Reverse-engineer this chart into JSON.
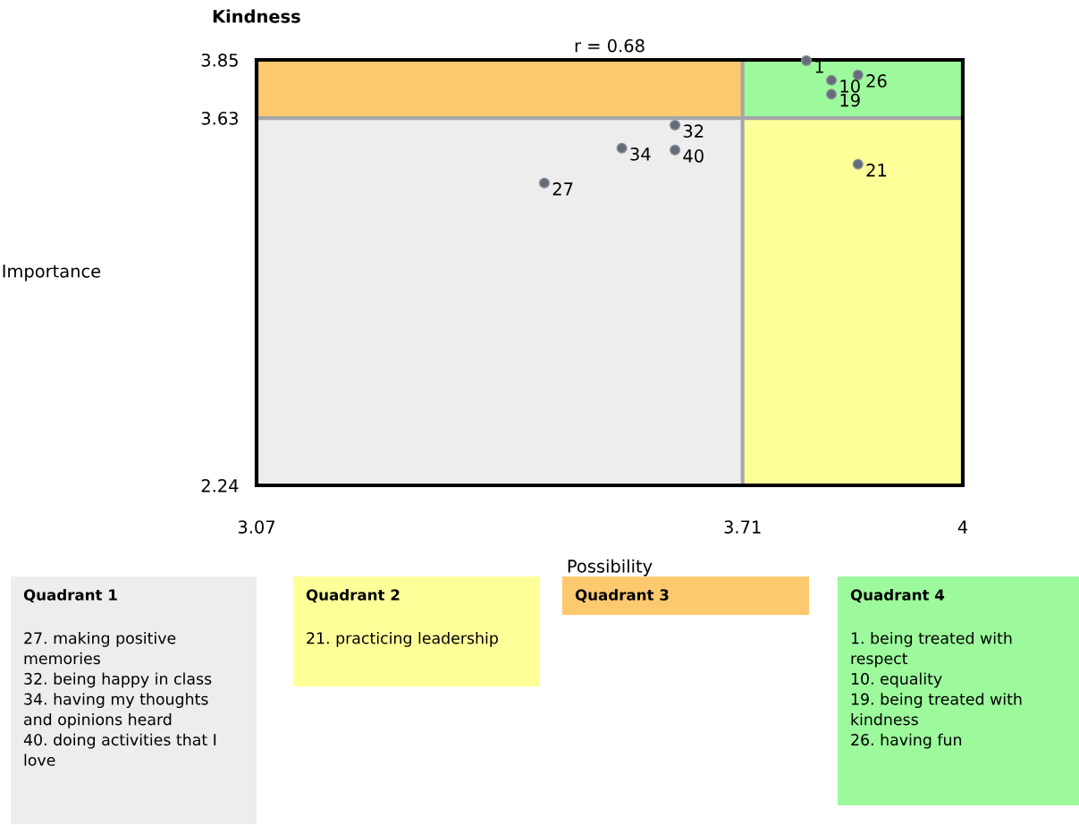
{
  "chart_data": [
    {
      "type": "scatter",
      "title": "Kindness",
      "xlabel": "Possibility",
      "ylabel": "Importance",
      "annotations": [
        "r = 0.68",
        {
          "text": "1",
          "x": 3.794,
          "y": 3.847
        },
        {
          "text": "10",
          "x": 3.827,
          "y": 3.773
        },
        {
          "text": "26",
          "x": 3.862,
          "y": 3.793
        },
        {
          "text": "19",
          "x": 3.827,
          "y": 3.72
        },
        {
          "text": "21",
          "x": 3.862,
          "y": 3.455
        },
        {
          "text": "32",
          "x": 3.621,
          "y": 3.603
        },
        {
          "text": "34",
          "x": 3.551,
          "y": 3.516
        },
        {
          "text": "40",
          "x": 3.621,
          "y": 3.509
        },
        {
          "text": "27",
          "x": 3.449,
          "y": 3.384
        }
      ],
      "x": [
        3.794,
        3.827,
        3.862,
        3.827,
        3.862,
        3.621,
        3.551,
        3.621,
        3.449
      ],
      "values": [
        3.847,
        3.773,
        3.793,
        3.72,
        3.455,
        3.603,
        3.516,
        3.509,
        3.384
      ],
      "color": "#646c7a",
      "marker": "circle",
      "xlim": [
        3.07,
        4
      ],
      "ylim": [
        2.24,
        3.85
      ],
      "xticks": [
        3.07,
        3.71,
        4
      ],
      "yticks": [
        2.24,
        3.63,
        3.85
      ],
      "grid": false,
      "legend": false,
      "bands": [
        {
          "axis": "x",
          "from": 3.71,
          "to": 4,
          "color": "#ffff99"
        },
        {
          "axis": "y",
          "from": 3.63,
          "to": 3.85,
          "color": "#fdc96f"
        }
      ],
      "ref_lines": [
        {
          "axis": "x",
          "value": 3.71,
          "color": "#a6a6a6"
        },
        {
          "axis": "y",
          "value": 3.63,
          "color": "#a6a6a6"
        }
      ]
    },
    {
      "type": "other",
      "title": "Quadrant 1",
      "color": "#ededed",
      "annotations": [
        "27. making positive\nmemories",
        "32. being happy in class",
        "34. having my thoughts\nand opinions heard",
        "40. doing activities that I\nlove"
      ]
    },
    {
      "type": "other",
      "title": "Quadrant 2",
      "color": "#ffff99",
      "annotations": [
        "21. practicing leadership"
      ]
    },
    {
      "type": "other",
      "title": "Quadrant 3",
      "color": "#fdc96f"
    },
    {
      "type": "other",
      "title": "Quadrant 4",
      "color": "#9cfa9c",
      "annotations": [
        "1. being treated with\nrespect",
        "10. equality",
        "19. being treated with\nkindness",
        "26. having fun"
      ]
    }
  ]
}
